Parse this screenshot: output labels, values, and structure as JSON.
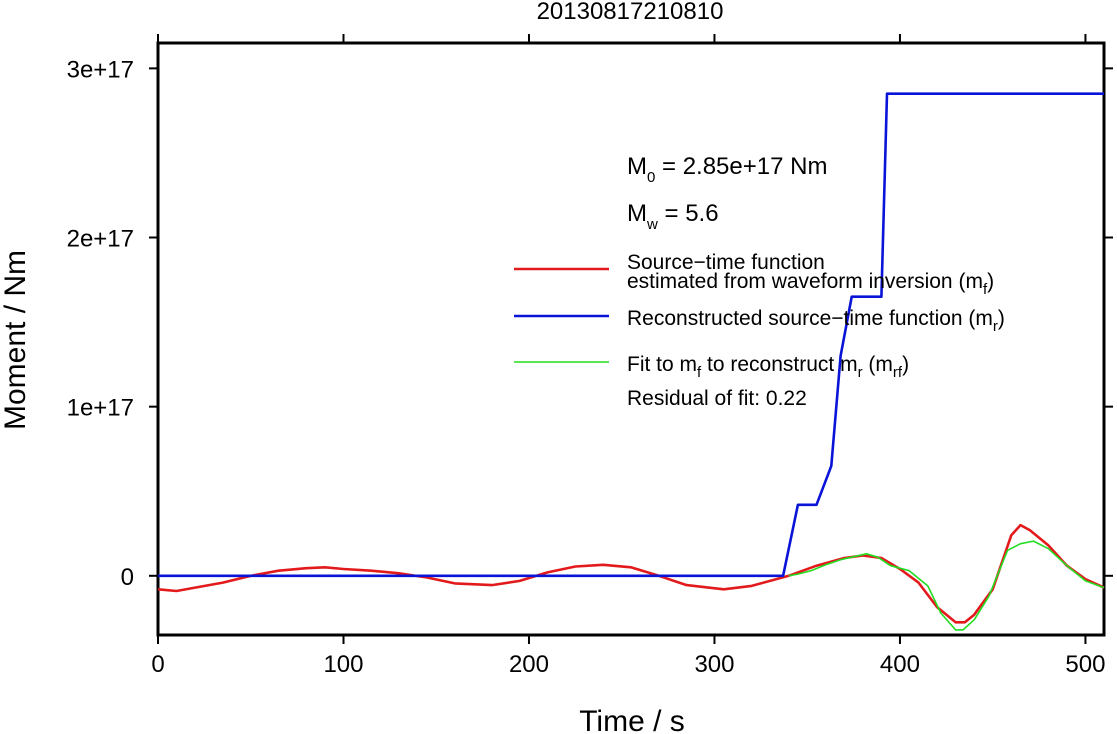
{
  "chart_data": {
    "type": "line",
    "title": "20130817210810",
    "xlabel": "Time / s",
    "ylabel": "Moment / Nm",
    "xlim": [
      0,
      510
    ],
    "ylim": [
      -3.5e+16,
      3.15e+17
    ],
    "x_ticks": [
      0,
      100,
      200,
      300,
      400,
      500
    ],
    "x_tick_labels": [
      "0",
      "100",
      "200",
      "300",
      "400",
      "500"
    ],
    "y_ticks": [
      0,
      1e+17,
      2e+17,
      3e+17
    ],
    "y_tick_labels": [
      "0",
      "1e+17",
      "2e+17",
      "3e+17"
    ],
    "grid": false,
    "legend_position": "right",
    "annotations": {
      "m0_symbol": "M",
      "m0_sub": "0",
      "m0_value": " = 2.85e+17 Nm",
      "mw_symbol": "M",
      "mw_sub": "w",
      "mw_value": " = 5.6",
      "residual": "Residual of fit: 0.22"
    },
    "legend": [
      {
        "color": "#e31a1c",
        "line1": "Source−time function",
        "line2": "estimated from waveform inversion (m",
        "sub": "f",
        "tail": ")"
      },
      {
        "color": "#0a14d8",
        "line1": "Reconstructed source−time function (m",
        "sub": "r",
        "tail": ")"
      },
      {
        "color": "#22dd22",
        "parts": [
          "Fit to m",
          "f",
          " to reconstruct m",
          "r",
          " (m",
          "rf",
          ")"
        ]
      }
    ],
    "series": [
      {
        "name": "Source−time function estimated from waveform inversion (mf)",
        "color": "#e31a1c",
        "x": [
          0,
          10,
          20,
          35,
          50,
          65,
          80,
          90,
          100,
          115,
          130,
          145,
          160,
          180,
          195,
          210,
          225,
          240,
          255,
          270,
          285,
          305,
          320,
          340,
          355,
          370,
          380,
          390,
          400,
          410,
          420,
          430,
          435,
          440,
          450,
          460,
          465,
          470,
          480,
          490,
          500,
          510
        ],
        "y": [
          -8000000000000000.0,
          -9000000000000000.0,
          -7000000000000000.0,
          -4000000000000000.0,
          0,
          3000000000000000.0,
          4500000000000000.0,
          5000000000000000.0,
          4000000000000000.0,
          3000000000000000.0,
          1500000000000000.0,
          -1000000000000000.0,
          -4500000000000000.0,
          -5500000000000000.0,
          -3000000000000000.0,
          2000000000000000.0,
          5500000000000000.0,
          6500000000000000.0,
          5000000000000000.0,
          0,
          -5500000000000000.0,
          -8000000000000000.0,
          -6000000000000000.0,
          0,
          6000000000000000.0,
          1.05e+16,
          1.2e+16,
          1.05e+16,
          4000000000000000.0,
          -4000000000000000.0,
          -1.85e+16,
          -2.75e+16,
          -2.75e+16,
          -2.3e+16,
          -8000000000000000.0,
          2.4e+16,
          3e+16,
          2.7e+16,
          1.8e+16,
          6000000000000000.0,
          -2000000000000000.0,
          -7000000000000000.0
        ]
      },
      {
        "name": "Reconstructed source−time function (mr)",
        "color": "#0a14d8",
        "x": [
          0,
          337,
          345,
          352,
          355,
          363,
          368,
          374,
          381,
          390,
          393,
          400,
          510
        ],
        "y": [
          0,
          0,
          4.2e+16,
          4.2e+16,
          4.2e+16,
          6.5e+16,
          1.3e+17,
          1.65e+17,
          1.65e+17,
          1.65e+17,
          2.85e+17,
          2.85e+17,
          2.85e+17
        ]
      },
      {
        "name": "Fit to mf to reconstruct mr (mrf)",
        "color": "#22dd22",
        "x": [
          340,
          345,
          352,
          360,
          368,
          376,
          382,
          388,
          395,
          405,
          415,
          422,
          430,
          434,
          440,
          448,
          458,
          465,
          472,
          480,
          490,
          500,
          510
        ],
        "y": [
          0,
          1000000000000000.0,
          3000000000000000.0,
          6500000000000000.0,
          9500000000000000.0,
          1.15e+16,
          1.3e+16,
          1.1e+16,
          6000000000000000.0,
          3000000000000000.0,
          -6000000000000000.0,
          -2.2e+16,
          -3.2e+16,
          -3.2e+16,
          -2.6e+16,
          -1.2e+16,
          1.5e+16,
          1.9e+16,
          2.05e+16,
          1.6e+16,
          6000000000000000.0,
          -3000000000000000.0,
          -7000000000000000.0
        ]
      }
    ]
  }
}
